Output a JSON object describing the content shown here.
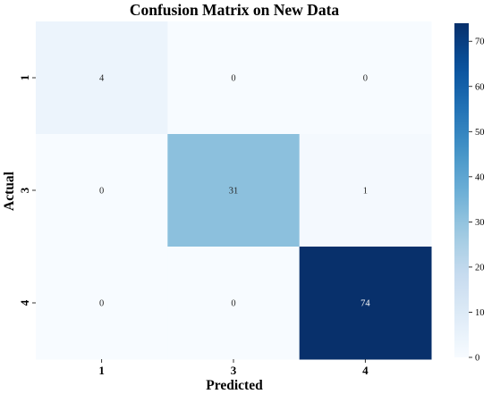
{
  "chart_data": {
    "type": "heatmap",
    "title": "Confusion Matrix on New Data",
    "xlabel": "Predicted",
    "ylabel": "Actual",
    "x_categories": [
      "1",
      "3",
      "4"
    ],
    "y_categories": [
      "1",
      "3",
      "4"
    ],
    "matrix": [
      [
        4,
        0,
        0
      ],
      [
        0,
        31,
        1
      ],
      [
        0,
        0,
        74
      ]
    ],
    "colormap": "Blues",
    "colorbar": {
      "min": 0,
      "max": 74,
      "ticks": [
        0,
        10,
        20,
        30,
        40,
        50,
        60,
        70
      ]
    },
    "colors": {
      "low": "#f7fbff",
      "high": "#08306b",
      "annotation_dark": "#262626",
      "annotation_light": "#ffffff"
    }
  }
}
